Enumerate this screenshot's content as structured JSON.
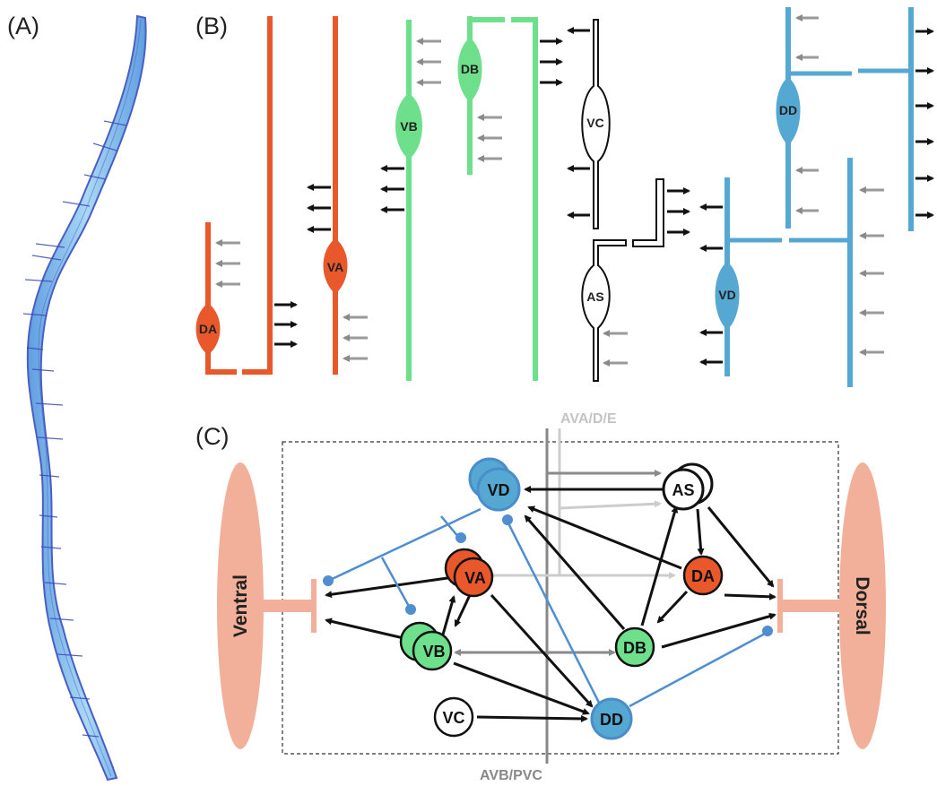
{
  "panels": {
    "a": "(A)",
    "b": "(B)",
    "c": "(C)"
  },
  "neurons_b": {
    "da": "DA",
    "va": "VA",
    "vb": "VB",
    "db": "DB",
    "vc": "VC",
    "as": "AS",
    "dd": "DD",
    "vd": "VD"
  },
  "neurons_c": {
    "vd": "VD",
    "as": "AS",
    "va": "VA",
    "da": "DA",
    "vb": "VB",
    "db": "DB",
    "vc": "VC",
    "dd": "DD"
  },
  "labels": {
    "ava": "AVA/D/E",
    "avb": "AVB/PVC",
    "ventral": "Ventral",
    "dorsal": "Dorsal"
  },
  "colors": {
    "da_va": "#e8582a",
    "vb_db": "#6ee08c",
    "dd_vd": "#55a8d2",
    "muscle": "#f2b09a",
    "worm": "#8cc8ee",
    "output": "#111111",
    "input": "#9a9a9a"
  }
}
